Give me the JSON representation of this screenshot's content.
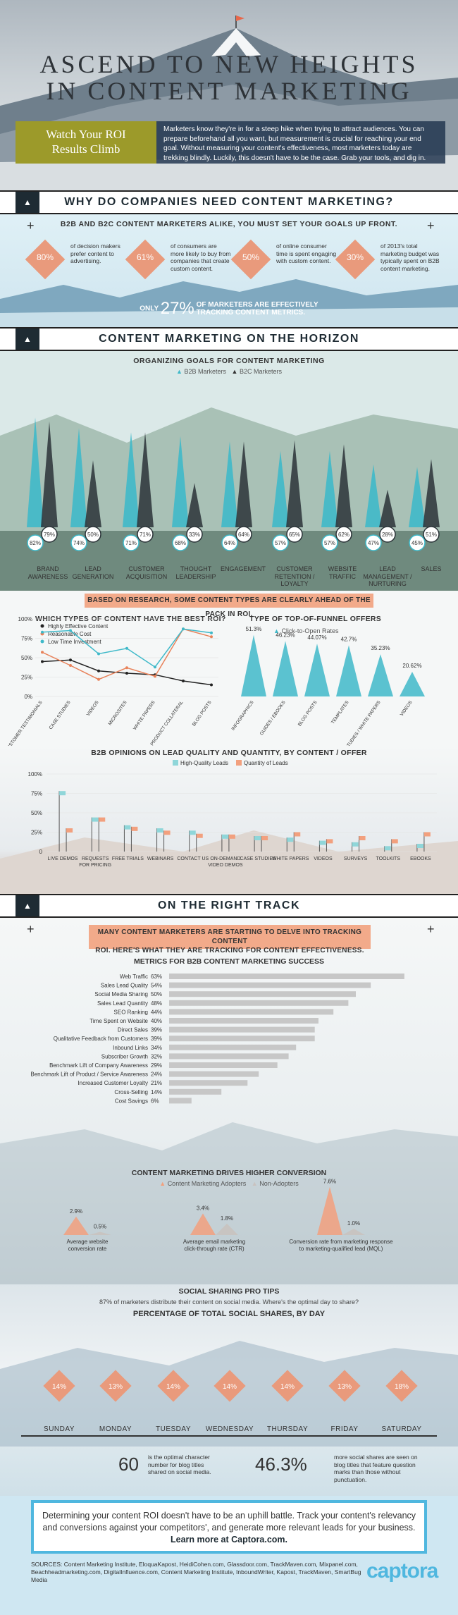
{
  "hero": {
    "title_line1": "ASCEND TO NEW HEIGHTS",
    "title_line2": "IN CONTENT MARKETING",
    "roi_line1": "Watch Your ROI",
    "roi_line2": "Results Climb",
    "intro": "Marketers know they're in for a steep hike when trying to attract audiences. You can prepare beforehand all you want, but measurement is crucial for reaching your end goal. Without measuring your content's effectiveness, most marketers today are trekking blindly. Luckily, this doesn't have to be the case. Grab your tools, and dig in."
  },
  "section1": {
    "title": "WHY DO COMPANIES NEED CONTENT MARKETING?",
    "subtitle": "B2B AND B2C CONTENT MARKETERS ALIKE, YOU MUST SET YOUR GOALS UP FRONT.",
    "stats": [
      {
        "value": "80%",
        "text": "of decision makers prefer content to advertising."
      },
      {
        "value": "61%",
        "text": "of consumers are more likely to buy from companies that create custom content."
      },
      {
        "value": "50%",
        "text": "of online consumer time is spent engaging with custom content."
      },
      {
        "value": "30%",
        "text": "of 2013's total marketing budget was typically spent on B2B content marketing."
      }
    ],
    "tracking_only": "ONLY",
    "tracking_value": "27%",
    "tracking_text1": "OF MARKETERS ARE EFFECTIVELY",
    "tracking_text2": "TRACKING CONTENT METRICS."
  },
  "section2": {
    "title": "CONTENT MARKETING ON THE HORIZON",
    "subtitle": "ORGANIZING GOALS FOR CONTENT MARKETING",
    "legend": [
      "B2B Marketers",
      "B2C Marketers"
    ],
    "categories": [
      {
        "label": "BRAND AWARENESS",
        "b2b": "82%",
        "b2c": "79%"
      },
      {
        "label": "LEAD GENERATION",
        "b2b": "74%",
        "b2c": "50%"
      },
      {
        "label": "CUSTOMER ACQUISITION",
        "b2b": "71%",
        "b2c": "71%"
      },
      {
        "label": "THOUGHT LEADERSHIP",
        "b2b": "68%",
        "b2c": "33%"
      },
      {
        "label": "ENGAGEMENT",
        "b2b": "64%",
        "b2c": "64%"
      },
      {
        "label": "CUSTOMER RETENTION / LOYALTY",
        "b2b": "57%",
        "b2c": "65%"
      },
      {
        "label": "WEBSITE TRAFFIC",
        "b2b": "57%",
        "b2c": "62%"
      },
      {
        "label": "LEAD MANAGEMENT / NURTURING",
        "b2b": "47%",
        "b2c": "28%"
      },
      {
        "label": "SALES",
        "b2b": "45%",
        "b2c": "51%"
      }
    ]
  },
  "section3": {
    "banner": "BASED ON RESEARCH, SOME CONTENT TYPES ARE CLEARLY AHEAD OF THE PACK IN ROI.",
    "roi_title": "WHICH TYPES OF CONTENT HAVE THE BEST ROI?",
    "funnel_title": "TYPE OF TOP-OF-FUNNEL OFFERS",
    "funnel_legend": "Click-to-Open Rates"
  },
  "section4": {
    "title": "B2B OPINIONS ON LEAD QUALITY AND QUANTITY, BY CONTENT / OFFER"
  },
  "section5": {
    "title": "ON THE RIGHT TRACK",
    "banner_line1": "MANY CONTENT MARKETERS ARE STARTING TO DELVE INTO TRACKING CONTENT",
    "banner_line2": "ROI. HERE'S WHAT THEY ARE TRACKING FOR CONTENT EFFECTIVENESS.",
    "metrics_title": "METRICS FOR B2B CONTENT MARKETING SUCCESS",
    "conversion_title": "CONTENT MARKETING DRIVES HIGHER CONVERSION",
    "conversion_legend": [
      "Content Marketing Adopters",
      "Non-Adopters"
    ],
    "conversion": [
      {
        "adopter": "2.9%",
        "non": "0.5%",
        "label1": "Average website",
        "label2": "conversion rate"
      },
      {
        "adopter": "3.4%",
        "non": "1.8%",
        "label1": "Average email marketing",
        "label2": "click-through rate (CTR)"
      },
      {
        "adopter": "7.6%",
        "non": "1.0%",
        "label1": "Conversion rate from marketing response",
        "label2": "to marketing-qualified lead (MQL)"
      }
    ]
  },
  "section6": {
    "title": "SOCIAL SHARING PRO TIPS",
    "subtitle": "87% of marketers distribute their content on social media. Where's the optimal day to share?",
    "day_title": "PERCENTAGE OF TOTAL SOCIAL SHARES, BY DAY",
    "days": [
      {
        "day": "SUNDAY",
        "value": "14%"
      },
      {
        "day": "MONDAY",
        "value": "13%"
      },
      {
        "day": "TUESDAY",
        "value": "14%"
      },
      {
        "day": "WEDNESDAY",
        "value": "14%"
      },
      {
        "day": "THURSDAY",
        "value": "14%"
      },
      {
        "day": "FRIDAY",
        "value": "13%"
      },
      {
        "day": "SATURDAY",
        "value": "18%"
      }
    ],
    "tip1_value": "60",
    "tip1_text": "is the optimal character number for blog titles shared on social media.",
    "tip2_value": "46.3%",
    "tip2_text": "more social shares are seen on blog titles that feature question marks than those without punctuation."
  },
  "cta": {
    "text": "Determining your content ROI doesn't have to be an uphill battle. Track your content's relevancy and conversions against your competitors', and generate more relevant leads for your business.",
    "link": "Learn more at Captora.com."
  },
  "footer": {
    "sources": "SOURCES: Content Marketing Institute, EloquaKapost, HeidiCohen.com, Glassdoor.com, TrackMaven.com, Mixpanel.com, Beachheadmarketing.com, DigitalInfluence.com, Content Marketing Institute, InboundWriter, Kapost, TrackMaven, SmartBug Media",
    "logo": "captora"
  },
  "chart_data": [
    {
      "type": "line",
      "title": "WHICH TYPES OF CONTENT HAVE THE BEST ROI?",
      "categories": [
        "CUSTOMER TESTIMONIALS",
        "CASE STUDIES",
        "VIDEOS",
        "MICROSITES",
        "WHITE PAPERS",
        "PRODUCT COLLATERAL",
        "BLOG POSTS"
      ],
      "ylim": [
        0,
        100
      ],
      "yticks": [
        "0%",
        "25%",
        "50%",
        "75%",
        "100%"
      ],
      "series": [
        {
          "name": "Highly Effective Content",
          "color": "#222222",
          "values": [
            45,
            47,
            33,
            30,
            28,
            20,
            15
          ]
        },
        {
          "name": "Reasonable Cost",
          "color": "#e8825a",
          "values": [
            57,
            40,
            22,
            37,
            26,
            87,
            77
          ]
        },
        {
          "name": "Low Time Investment",
          "color": "#3fb9c9",
          "values": [
            83,
            85,
            55,
            62,
            38,
            87,
            82
          ]
        }
      ]
    },
    {
      "type": "bar",
      "title": "TYPE OF TOP-OF-FUNNEL OFFERS",
      "series": [
        {
          "name": "Click-to-Open Rates",
          "values": [
            51.3,
            46.23,
            44.07,
            42.7,
            35.23,
            20.62
          ]
        }
      ],
      "value_labels": [
        "51.3%",
        "46.23%",
        "44.07%",
        "42.7%",
        "35.23%",
        "20.62%"
      ],
      "categories": [
        "INFOGRAPHICS",
        "GUIDES / EBOOKS",
        "BLOG POSTS",
        "TEMPLATES",
        "STUDIES / WHITE PAPERS",
        "VIDEOS"
      ]
    },
    {
      "type": "bar",
      "title": "B2B OPINIONS ON LEAD QUALITY AND QUANTITY, BY CONTENT / OFFER",
      "categories": [
        "LIVE DEMOS",
        "REQUESTS FOR PRICING",
        "FREE TRIALS",
        "WEBINARS",
        "CONTACT US",
        "ON-DEMAND VIDEO DEMOS",
        "CASE STUDIES",
        "WHITE PAPERS",
        "VIDEOS",
        "SURVEYS",
        "TOOLKITS",
        "EBOOKS"
      ],
      "ylim": [
        0,
        100
      ],
      "yticks": [
        "0",
        "25%",
        "50%",
        "75%",
        "100%"
      ],
      "series": [
        {
          "name": "High-Quality Leads",
          "color": "#8fd6d9",
          "values": [
            78,
            44,
            34,
            30,
            27,
            22,
            20,
            18,
            14,
            12,
            7,
            10
          ]
        },
        {
          "name": "Quantity of Leads",
          "color": "#f2a07e",
          "values": [
            30,
            44,
            32,
            27,
            23,
            22,
            20,
            25,
            16,
            20,
            16,
            25
          ]
        }
      ]
    },
    {
      "type": "bar",
      "title": "METRICS FOR B2B CONTENT MARKETING SUCCESS",
      "categories": [
        "Web Traffic",
        "Sales Lead Quality",
        "Social Media Sharing",
        "Sales Lead Quantity",
        "SEO Ranking",
        "Time Spent on Website",
        "Direct Sales",
        "Qualitative Feedback from Customers",
        "Inbound Links",
        "Subscriber Growth",
        "Benchmark Lift of Company Awareness",
        "Benchmark Lift of Product / Service Awareness",
        "Increased Customer Loyalty",
        "Cross-Selling",
        "Cost Savings"
      ],
      "values": [
        63,
        54,
        50,
        48,
        44,
        40,
        39,
        39,
        34,
        32,
        29,
        24,
        21,
        14,
        6
      ],
      "value_labels": [
        "63%",
        "54%",
        "50%",
        "48%",
        "44%",
        "40%",
        "39%",
        "39%",
        "34%",
        "32%",
        "29%",
        "24%",
        "21%",
        "14%",
        "6%"
      ]
    }
  ]
}
